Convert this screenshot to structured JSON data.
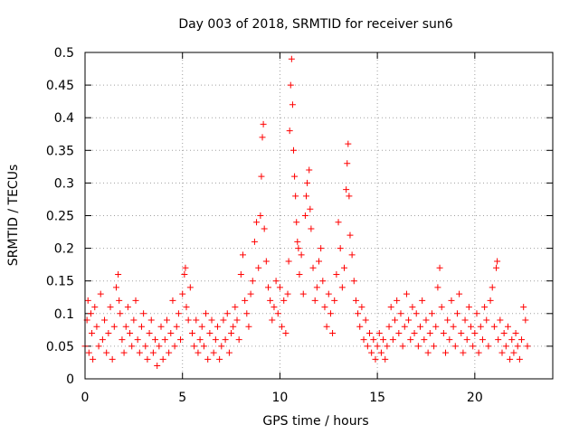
{
  "chart_data": {
    "type": "scatter",
    "title": "Day 003 of 2018, SRMTID for receiver sun6",
    "xlabel": "GPS time / hours",
    "ylabel": "SRMTID / TECUs",
    "xlim": [
      0,
      24
    ],
    "ylim": [
      0,
      0.5
    ],
    "xticks": [
      0,
      5,
      10,
      15,
      20
    ],
    "xtick_labels": [
      "0",
      "5",
      "10",
      "15",
      "20"
    ],
    "yticks": [
      0,
      0.05,
      0.1,
      0.15,
      0.2,
      0.25,
      0.3,
      0.35,
      0.4,
      0.45,
      0.5
    ],
    "ytick_labels": [
      "0",
      "0.05",
      "0.1",
      "0.15",
      "0.2",
      "0.25",
      "0.3",
      "0.35",
      "0.4",
      "0.45",
      "0.5"
    ],
    "grid": true,
    "marker": "+",
    "color": "#ff0000",
    "series": [
      {
        "name": "SRMTID",
        "points": [
          [
            0.0,
            0.05
          ],
          [
            0.1,
            0.09
          ],
          [
            0.15,
            0.12
          ],
          [
            0.2,
            0.04
          ],
          [
            0.3,
            0.1
          ],
          [
            0.35,
            0.07
          ],
          [
            0.4,
            0.03
          ],
          [
            0.5,
            0.11
          ],
          [
            0.6,
            0.08
          ],
          [
            0.7,
            0.05
          ],
          [
            0.8,
            0.13
          ],
          [
            0.9,
            0.06
          ],
          [
            1.0,
            0.09
          ],
          [
            1.1,
            0.04
          ],
          [
            1.2,
            0.07
          ],
          [
            1.3,
            0.11
          ],
          [
            1.4,
            0.03
          ],
          [
            1.5,
            0.08
          ],
          [
            1.6,
            0.14
          ],
          [
            1.7,
            0.16
          ],
          [
            1.75,
            0.12
          ],
          [
            1.8,
            0.1
          ],
          [
            1.9,
            0.06
          ],
          [
            2.0,
            0.04
          ],
          [
            2.1,
            0.08
          ],
          [
            2.2,
            0.11
          ],
          [
            2.3,
            0.07
          ],
          [
            2.4,
            0.05
          ],
          [
            2.5,
            0.09
          ],
          [
            2.6,
            0.12
          ],
          [
            2.7,
            0.06
          ],
          [
            2.8,
            0.04
          ],
          [
            2.9,
            0.08
          ],
          [
            3.0,
            0.1
          ],
          [
            3.1,
            0.05
          ],
          [
            3.2,
            0.03
          ],
          [
            3.3,
            0.07
          ],
          [
            3.4,
            0.09
          ],
          [
            3.5,
            0.04
          ],
          [
            3.6,
            0.06
          ],
          [
            3.7,
            0.02
          ],
          [
            3.8,
            0.05
          ],
          [
            3.9,
            0.08
          ],
          [
            4.0,
            0.03
          ],
          [
            4.1,
            0.06
          ],
          [
            4.2,
            0.09
          ],
          [
            4.3,
            0.04
          ],
          [
            4.4,
            0.07
          ],
          [
            4.5,
            0.12
          ],
          [
            4.6,
            0.05
          ],
          [
            4.7,
            0.08
          ],
          [
            4.8,
            0.1
          ],
          [
            4.9,
            0.06
          ],
          [
            5.0,
            0.13
          ],
          [
            5.1,
            0.16
          ],
          [
            5.15,
            0.17
          ],
          [
            5.2,
            0.11
          ],
          [
            5.3,
            0.09
          ],
          [
            5.4,
            0.14
          ],
          [
            5.5,
            0.07
          ],
          [
            5.6,
            0.05
          ],
          [
            5.7,
            0.09
          ],
          [
            5.8,
            0.04
          ],
          [
            5.9,
            0.06
          ],
          [
            6.0,
            0.08
          ],
          [
            6.1,
            0.05
          ],
          [
            6.2,
            0.1
          ],
          [
            6.3,
            0.03
          ],
          [
            6.4,
            0.07
          ],
          [
            6.5,
            0.09
          ],
          [
            6.6,
            0.04
          ],
          [
            6.7,
            0.06
          ],
          [
            6.8,
            0.08
          ],
          [
            6.9,
            0.03
          ],
          [
            7.0,
            0.05
          ],
          [
            7.1,
            0.09
          ],
          [
            7.2,
            0.06
          ],
          [
            7.3,
            0.1
          ],
          [
            7.4,
            0.04
          ],
          [
            7.5,
            0.07
          ],
          [
            7.6,
            0.08
          ],
          [
            7.7,
            0.11
          ],
          [
            7.8,
            0.09
          ],
          [
            7.9,
            0.06
          ],
          [
            8.0,
            0.16
          ],
          [
            8.1,
            0.19
          ],
          [
            8.2,
            0.12
          ],
          [
            8.3,
            0.1
          ],
          [
            8.4,
            0.08
          ],
          [
            8.5,
            0.13
          ],
          [
            8.6,
            0.15
          ],
          [
            8.7,
            0.21
          ],
          [
            8.8,
            0.24
          ],
          [
            8.9,
            0.17
          ],
          [
            9.0,
            0.25
          ],
          [
            9.05,
            0.31
          ],
          [
            9.1,
            0.37
          ],
          [
            9.15,
            0.39
          ],
          [
            9.2,
            0.23
          ],
          [
            9.3,
            0.18
          ],
          [
            9.4,
            0.14
          ],
          [
            9.5,
            0.12
          ],
          [
            9.6,
            0.09
          ],
          [
            9.7,
            0.11
          ],
          [
            9.8,
            0.15
          ],
          [
            9.9,
            0.1
          ],
          [
            10.0,
            0.14
          ],
          [
            10.1,
            0.08
          ],
          [
            10.2,
            0.12
          ],
          [
            10.3,
            0.07
          ],
          [
            10.4,
            0.13
          ],
          [
            10.45,
            0.18
          ],
          [
            10.5,
            0.38
          ],
          [
            10.55,
            0.45
          ],
          [
            10.6,
            0.49
          ],
          [
            10.65,
            0.42
          ],
          [
            10.7,
            0.35
          ],
          [
            10.75,
            0.31
          ],
          [
            10.8,
            0.28
          ],
          [
            10.85,
            0.24
          ],
          [
            10.9,
            0.21
          ],
          [
            10.95,
            0.2
          ],
          [
            11.0,
            0.16
          ],
          [
            11.1,
            0.19
          ],
          [
            11.2,
            0.13
          ],
          [
            11.3,
            0.25
          ],
          [
            11.35,
            0.28
          ],
          [
            11.4,
            0.3
          ],
          [
            11.5,
            0.32
          ],
          [
            11.55,
            0.26
          ],
          [
            11.6,
            0.23
          ],
          [
            11.7,
            0.17
          ],
          [
            11.8,
            0.12
          ],
          [
            11.9,
            0.14
          ],
          [
            12.0,
            0.18
          ],
          [
            12.1,
            0.2
          ],
          [
            12.2,
            0.15
          ],
          [
            12.3,
            0.11
          ],
          [
            12.4,
            0.08
          ],
          [
            12.5,
            0.13
          ],
          [
            12.6,
            0.1
          ],
          [
            12.7,
            0.07
          ],
          [
            12.8,
            0.12
          ],
          [
            12.9,
            0.16
          ],
          [
            13.0,
            0.24
          ],
          [
            13.1,
            0.2
          ],
          [
            13.2,
            0.14
          ],
          [
            13.3,
            0.17
          ],
          [
            13.4,
            0.29
          ],
          [
            13.45,
            0.33
          ],
          [
            13.5,
            0.36
          ],
          [
            13.55,
            0.28
          ],
          [
            13.6,
            0.22
          ],
          [
            13.7,
            0.19
          ],
          [
            13.8,
            0.15
          ],
          [
            13.9,
            0.12
          ],
          [
            14.0,
            0.1
          ],
          [
            14.1,
            0.08
          ],
          [
            14.2,
            0.11
          ],
          [
            14.3,
            0.06
          ],
          [
            14.4,
            0.09
          ],
          [
            14.5,
            0.05
          ],
          [
            14.6,
            0.07
          ],
          [
            14.7,
            0.04
          ],
          [
            14.8,
            0.06
          ],
          [
            14.9,
            0.03
          ],
          [
            15.0,
            0.05
          ],
          [
            15.1,
            0.07
          ],
          [
            15.2,
            0.04
          ],
          [
            15.3,
            0.06
          ],
          [
            15.4,
            0.03
          ],
          [
            15.5,
            0.05
          ],
          [
            15.6,
            0.08
          ],
          [
            15.7,
            0.11
          ],
          [
            15.8,
            0.06
          ],
          [
            15.9,
            0.09
          ],
          [
            16.0,
            0.12
          ],
          [
            16.1,
            0.07
          ],
          [
            16.2,
            0.1
          ],
          [
            16.3,
            0.05
          ],
          [
            16.4,
            0.08
          ],
          [
            16.5,
            0.13
          ],
          [
            16.6,
            0.09
          ],
          [
            16.7,
            0.06
          ],
          [
            16.8,
            0.11
          ],
          [
            16.9,
            0.07
          ],
          [
            17.0,
            0.1
          ],
          [
            17.1,
            0.05
          ],
          [
            17.2,
            0.08
          ],
          [
            17.3,
            0.12
          ],
          [
            17.4,
            0.06
          ],
          [
            17.5,
            0.09
          ],
          [
            17.6,
            0.04
          ],
          [
            17.7,
            0.07
          ],
          [
            17.8,
            0.1
          ],
          [
            17.9,
            0.05
          ],
          [
            18.0,
            0.08
          ],
          [
            18.1,
            0.14
          ],
          [
            18.2,
            0.17
          ],
          [
            18.3,
            0.11
          ],
          [
            18.4,
            0.07
          ],
          [
            18.5,
            0.04
          ],
          [
            18.6,
            0.09
          ],
          [
            18.7,
            0.06
          ],
          [
            18.8,
            0.12
          ],
          [
            18.9,
            0.08
          ],
          [
            19.0,
            0.05
          ],
          [
            19.1,
            0.1
          ],
          [
            19.2,
            0.13
          ],
          [
            19.3,
            0.07
          ],
          [
            19.4,
            0.04
          ],
          [
            19.5,
            0.09
          ],
          [
            19.6,
            0.06
          ],
          [
            19.7,
            0.11
          ],
          [
            19.8,
            0.08
          ],
          [
            19.9,
            0.05
          ],
          [
            20.0,
            0.07
          ],
          [
            20.1,
            0.1
          ],
          [
            20.2,
            0.04
          ],
          [
            20.3,
            0.08
          ],
          [
            20.4,
            0.06
          ],
          [
            20.5,
            0.11
          ],
          [
            20.6,
            0.09
          ],
          [
            20.7,
            0.05
          ],
          [
            20.8,
            0.12
          ],
          [
            20.9,
            0.14
          ],
          [
            21.0,
            0.08
          ],
          [
            21.1,
            0.17
          ],
          [
            21.15,
            0.18
          ],
          [
            21.2,
            0.06
          ],
          [
            21.3,
            0.09
          ],
          [
            21.4,
            0.04
          ],
          [
            21.5,
            0.07
          ],
          [
            21.6,
            0.05
          ],
          [
            21.7,
            0.08
          ],
          [
            21.8,
            0.03
          ],
          [
            21.9,
            0.06
          ],
          [
            22.0,
            0.04
          ],
          [
            22.1,
            0.07
          ],
          [
            22.2,
            0.05
          ],
          [
            22.3,
            0.03
          ],
          [
            22.4,
            0.06
          ],
          [
            22.5,
            0.11
          ],
          [
            22.6,
            0.09
          ],
          [
            22.7,
            0.05
          ]
        ]
      }
    ]
  }
}
